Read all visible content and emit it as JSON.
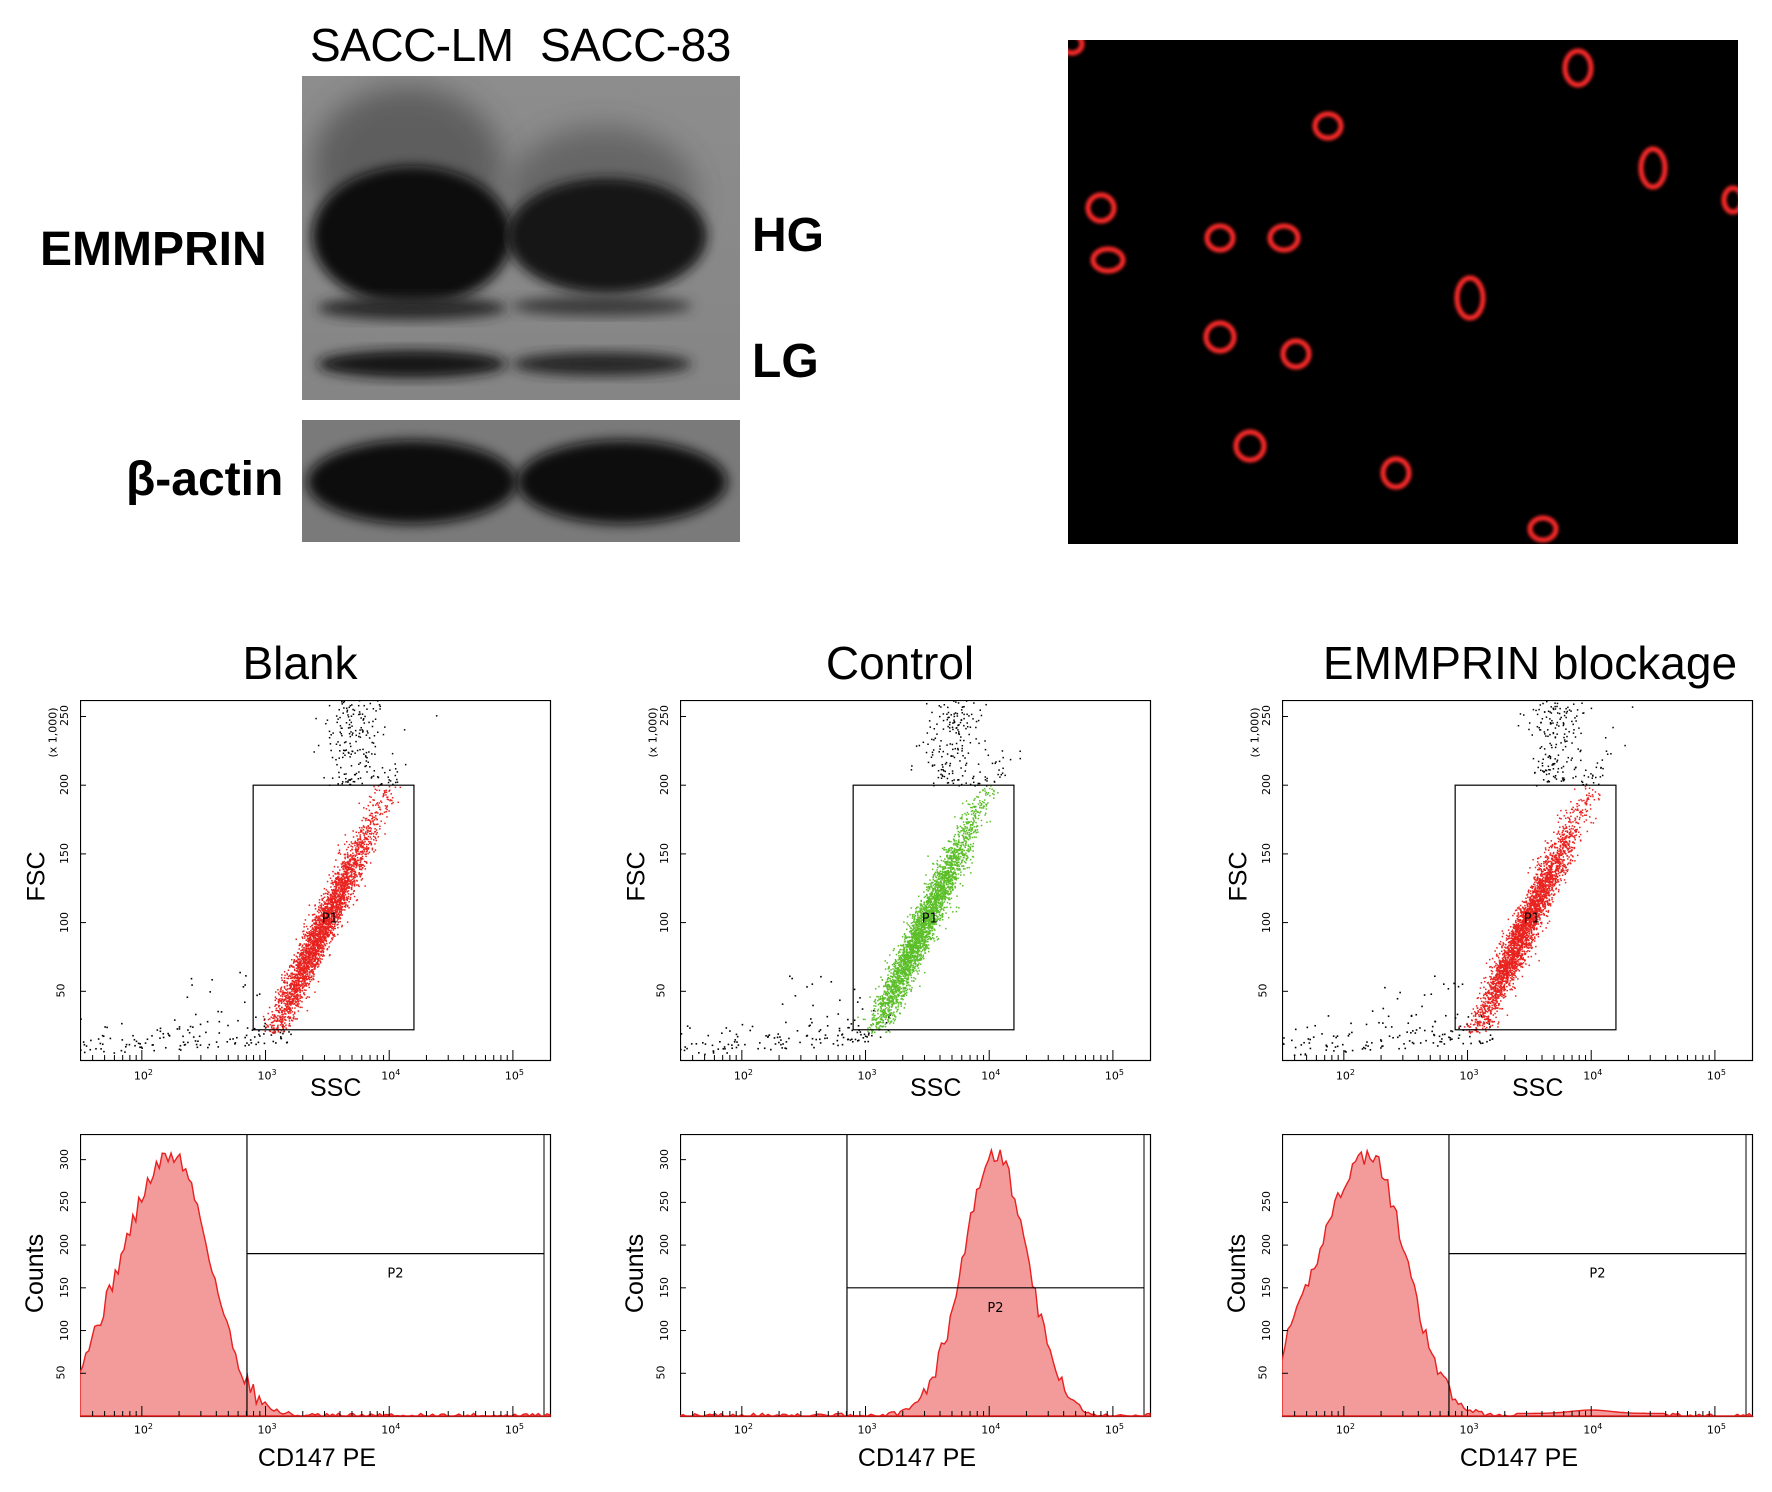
{
  "western": {
    "lanes": [
      "SACC-LM",
      "SACC-83"
    ],
    "target_label": "EMMPRIN",
    "loading_label": "β-actin",
    "bands": [
      "HG",
      "LG"
    ]
  },
  "flow": {
    "x_decade_ticks": [
      "10",
      "10",
      "10",
      "10"
    ],
    "x_decade_exps": [
      "2",
      "3",
      "4",
      "5"
    ],
    "scatter": {
      "x_label": "SSC",
      "y_label": "FSC",
      "y_multiplier": "(x 1,000)",
      "y_ticks": [
        "50",
        "100",
        "150",
        "200",
        "250"
      ],
      "gate": "P1"
    },
    "histogram": {
      "x_label": "CD147 PE",
      "y_label": "Counts",
      "gate": "P2"
    },
    "panels": [
      {
        "title": "Blank",
        "dot_color": "#e8231f",
        "hist_y_ticks": [
          "50",
          "100",
          "150",
          "200",
          "250",
          "300"
        ],
        "hist_peak_log": 2.25
      },
      {
        "title": "Control",
        "dot_color": "#5cbf2a",
        "hist_y_ticks": [
          "50",
          "100",
          "150",
          "200",
          "250",
          "300"
        ],
        "hist_peak_log": 4.05
      },
      {
        "title": "EMMPRIN blockage",
        "dot_color": "#e8231f",
        "hist_y_ticks": [
          "50",
          "100",
          "150",
          "200",
          "250"
        ],
        "hist_peak_log": 2.2
      }
    ]
  }
}
